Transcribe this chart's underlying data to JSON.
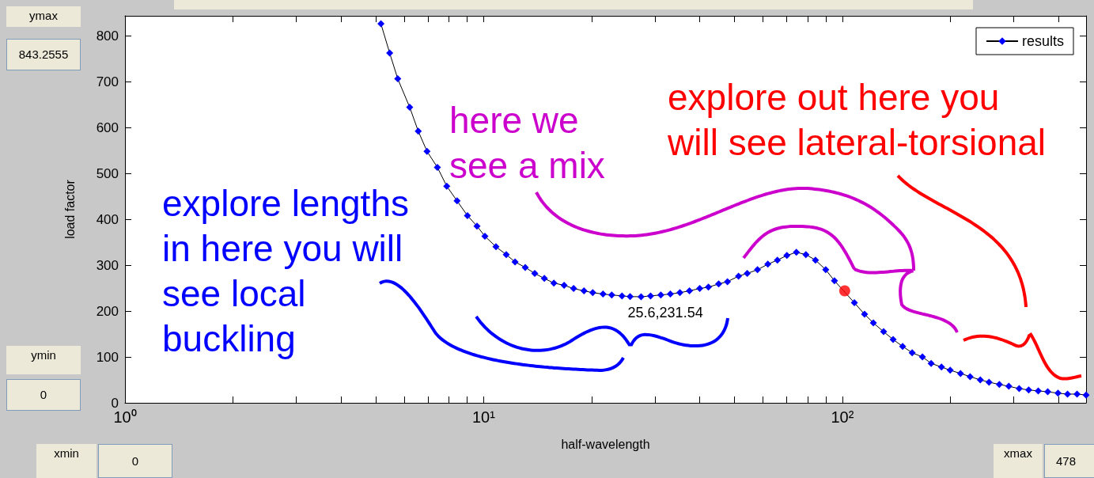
{
  "chart_data": {
    "type": "line",
    "xlabel": "half-wavelength",
    "ylabel": "load factor",
    "xlim": [
      1,
      478
    ],
    "ylim": [
      0,
      843.2555
    ],
    "xticks": [
      {
        "value": 1,
        "label": "10⁰"
      },
      {
        "value": 2,
        "label": null
      },
      {
        "value": 3,
        "label": null
      },
      {
        "value": 4,
        "label": null
      },
      {
        "value": 5,
        "label": null
      },
      {
        "value": 6,
        "label": null
      },
      {
        "value": 7,
        "label": null
      },
      {
        "value": 8,
        "label": null
      },
      {
        "value": 9,
        "label": null
      },
      {
        "value": 10,
        "label": "10¹"
      },
      {
        "value": 20,
        "label": null
      },
      {
        "value": 30,
        "label": null
      },
      {
        "value": 40,
        "label": null
      },
      {
        "value": 50,
        "label": null
      },
      {
        "value": 60,
        "label": null
      },
      {
        "value": 70,
        "label": null
      },
      {
        "value": 80,
        "label": null
      },
      {
        "value": 90,
        "label": null
      },
      {
        "value": 100,
        "label": "10²"
      },
      {
        "value": 200,
        "label": null
      },
      {
        "value": 300,
        "label": null
      },
      {
        "value": 400,
        "label": null
      }
    ],
    "yticks": [
      0,
      100,
      200,
      300,
      400,
      500,
      600,
      700,
      800
    ],
    "log": "x",
    "grid": false,
    "legend": "top right",
    "marker": "diamond",
    "line_style": "solid",
    "series": [
      {
        "name": "results",
        "color": "#0000ff",
        "x": [
          5.17,
          5.47,
          5.76,
          6.22,
          6.57,
          6.95,
          7.43,
          7.89,
          8.43,
          9.01,
          9.58,
          10.08,
          10.82,
          11.56,
          12.23,
          13.06,
          13.88,
          14.76,
          15.69,
          16.76,
          17.81,
          19.04,
          20.14,
          21.51,
          22.75,
          24.3,
          25.6,
          27.47,
          29.19,
          31.18,
          33.14,
          35.24,
          37.46,
          40.02,
          42.32,
          45.2,
          47.82,
          51.34,
          54.3,
          58.0,
          61.97,
          65.89,
          70.02,
          74.42,
          79.12,
          84.13,
          89.86,
          95.04,
          101.5,
          108.0,
          115.3,
          122.0,
          130.3,
          138.5,
          147.2,
          156.5,
          167.2,
          176.8,
          188.9,
          199.8,
          213.5,
          227.0,
          242.4,
          256.4,
          273.9,
          291.1,
          311.1,
          330.7,
          351.6,
          373.7,
          399.2,
          424.3,
          451.0,
          478
        ],
        "values": [
          826,
          762,
          706,
          644,
          592,
          548,
          513,
          472,
          440,
          408,
          385,
          363,
          340,
          323,
          307,
          295,
          282,
          271,
          261,
          256,
          249,
          244,
          240,
          237,
          235,
          233,
          231.54,
          231,
          233,
          235,
          237,
          240,
          244,
          249,
          252,
          259,
          264,
          276,
          282,
          290,
          302,
          311,
          321,
          328,
          323,
          311,
          290,
          266,
          null,
          218,
          193,
          174,
          155,
          138,
          123,
          109,
          100,
          86,
          78,
          71,
          64,
          57,
          50,
          45,
          40,
          36,
          31,
          28,
          26,
          24,
          21,
          19,
          19,
          17
        ]
      },
      {
        "type": "scatter",
        "color": "#ff0000",
        "marker": "circle",
        "x": [
          101.5
        ],
        "values": [
          244
        ]
      }
    ],
    "annotations": [
      "explore lengths in here you will see local buckling",
      "here we see a mix",
      "explore out here you will see lateral-torsional",
      {
        "text": "25.6,231.54",
        "x": 25.6,
        "y": 231.54
      },
      "ymax",
      "843.2555",
      "ymin",
      "0",
      "xmin",
      "0",
      "xmax",
      "478"
    ]
  }
}
